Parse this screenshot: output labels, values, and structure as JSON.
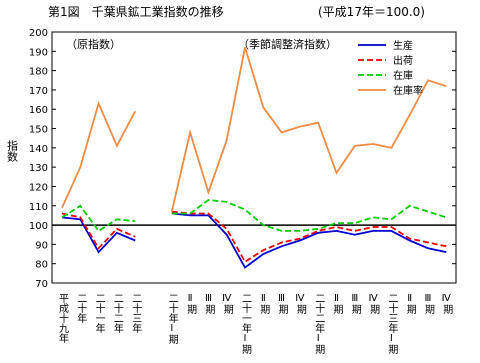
{
  "chart_data": {
    "type": "line",
    "title": "第1図　千葉県鉱工業指数の推移",
    "subtitle": "(平成17年＝100.0)",
    "annotations": [
      "（原指数）",
      "（季節調整済指数）"
    ],
    "y_label": "指数",
    "categories": [
      "平成十九年",
      "二十年",
      "二十一年",
      "二十二年",
      "二十三年",
      null,
      "二十年Ⅰ期",
      "Ⅱ期",
      "Ⅲ期",
      "Ⅳ期",
      "二十一年Ⅰ期",
      "Ⅱ期",
      "Ⅲ期",
      "Ⅳ期",
      "二十二年Ⅰ期",
      "Ⅱ期",
      "Ⅲ期",
      "Ⅳ期",
      "二十三年Ⅰ期",
      "Ⅱ期",
      "Ⅲ期",
      "Ⅳ期"
    ],
    "series": [
      {
        "name": "生産",
        "color": "#0000cc",
        "dash": false,
        "values": [
          104,
          103,
          86,
          96,
          92,
          null,
          106,
          105,
          105,
          95,
          78,
          85,
          89,
          92,
          96,
          97,
          95,
          97,
          97,
          92,
          88,
          86
        ]
      },
      {
        "name": "出荷",
        "color": "#ee0000",
        "dash": true,
        "values": [
          106,
          104,
          88,
          98,
          94,
          null,
          107,
          106,
          106,
          98,
          81,
          87,
          91,
          93,
          97,
          99,
          97,
          99,
          99,
          93,
          91,
          89
        ]
      },
      {
        "name": "在庫",
        "color": "#00cc00",
        "dash": true,
        "values": [
          104,
          110,
          97,
          103,
          102,
          null,
          106,
          106,
          113,
          112,
          108,
          100,
          97,
          97,
          98,
          101,
          101,
          104,
          103,
          110,
          107,
          104
        ]
      },
      {
        "name": "在庫率",
        "color": "#f08c46",
        "dash": false,
        "values": [
          109,
          130,
          163,
          141,
          159,
          null,
          107,
          148,
          117,
          144,
          192,
          161,
          148,
          151,
          153,
          127,
          141,
          142,
          140,
          157,
          175,
          172
        ]
      }
    ],
    "baseline": 100,
    "ylim": [
      70,
      200
    ],
    "yticks": [
      70,
      80,
      90,
      100,
      110,
      120,
      130,
      140,
      150,
      160,
      170,
      180,
      190,
      200
    ],
    "grid": false
  }
}
